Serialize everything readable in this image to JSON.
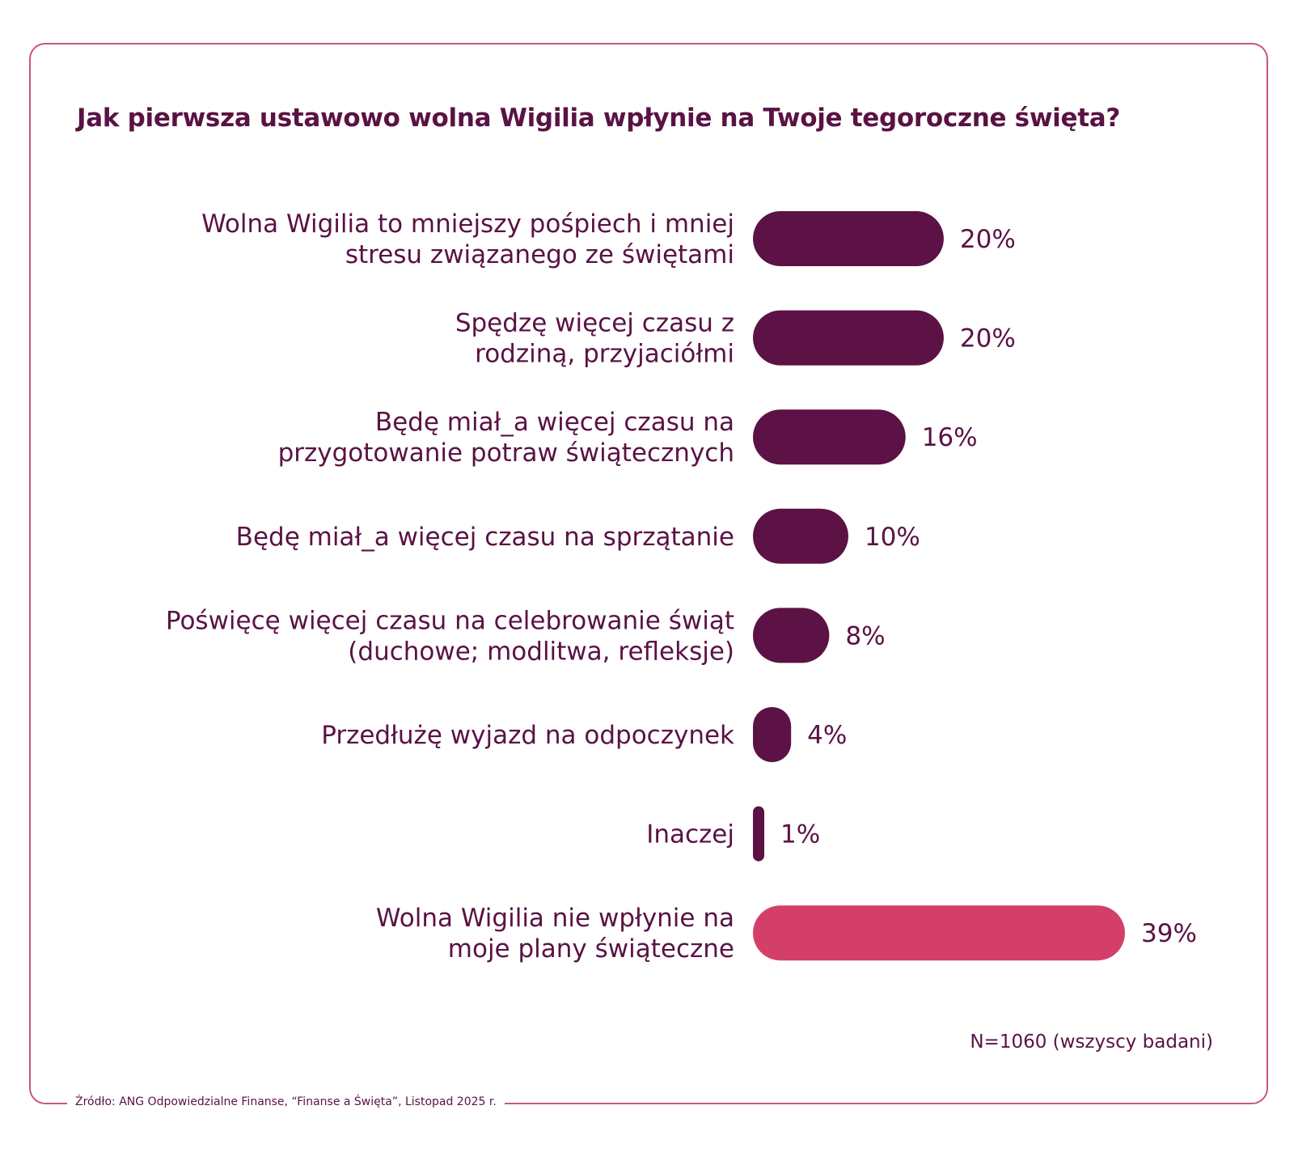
{
  "title": "Jak pierwsza ustawowo wolna Wigilia wpłynie na Twoje tegoroczne święta?",
  "note": "N=1060 (wszyscy badani)",
  "source": "Źródło: ANG Odpowiedzialne Finanse, “Finanse a Święta”, Listopad 2025 r.",
  "colors": {
    "primary_bar": "#5c1244",
    "highlight_bar": "#d43f6a",
    "text": "#5a1244",
    "frame": "#c9557b"
  },
  "chart_data": {
    "type": "bar",
    "orientation": "horizontal",
    "title": "Jak pierwsza ustawowo wolna Wigilia wpłynie na Twoje tegoroczne święta?",
    "unit": "%",
    "categories": [
      [
        "Wolna Wigilia to mniejszy pośpiech i mniej",
        "stresu związanego ze świętami"
      ],
      [
        "Spędzę więcej czasu z",
        "rodziną, przyjaciółmi"
      ],
      [
        "Będę miał_a więcej czasu na",
        "przygotowanie potraw świątecznych"
      ],
      [
        "Będę miał_a więcej czasu na sprzątanie"
      ],
      [
        "Poświęcę więcej czasu na celebrowanie świąt",
        "(duchowe; modlitwa, refleksje)"
      ],
      [
        "Przedłużę wyjazd na odpoczynek"
      ],
      [
        "Inaczej"
      ],
      [
        "Wolna Wigilia nie wpłynie na",
        "moje plany świąteczne"
      ]
    ],
    "values": [
      20,
      20,
      16,
      10,
      8,
      4,
      1,
      39
    ],
    "value_labels": [
      "20%",
      "20%",
      "16%",
      "10%",
      "8%",
      "4%",
      "1%",
      "39%"
    ],
    "highlight": [
      false,
      false,
      false,
      false,
      false,
      false,
      false,
      true
    ],
    "xlim": [
      0,
      39
    ],
    "axes_visible": false,
    "grid": false
  }
}
